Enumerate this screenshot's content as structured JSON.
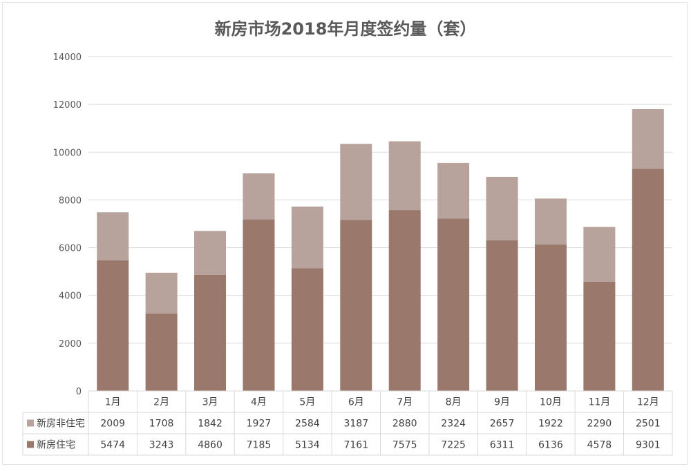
{
  "chart_data": {
    "type": "bar",
    "stacked": true,
    "title": "新房市场2018年月度签约量（套）",
    "categories": [
      "1月",
      "2月",
      "3月",
      "4月",
      "5月",
      "6月",
      "7月",
      "8月",
      "9月",
      "10月",
      "11月",
      "12月"
    ],
    "series": [
      {
        "name": "新房非住宅",
        "color": "#b7a29c",
        "values": [
          2009,
          1708,
          1842,
          1927,
          2584,
          3187,
          2880,
          2324,
          2657,
          1922,
          2290,
          2501
        ]
      },
      {
        "name": "新房住宅",
        "color": "#9a786b",
        "values": [
          5474,
          3243,
          4860,
          7185,
          5134,
          7161,
          7575,
          7225,
          6311,
          6136,
          4578,
          9301
        ]
      }
    ],
    "ylim": [
      0,
      14000
    ],
    "yticks": [
      0,
      2000,
      4000,
      6000,
      8000,
      10000,
      12000,
      14000
    ],
    "grid": true,
    "legend": "data-table"
  }
}
